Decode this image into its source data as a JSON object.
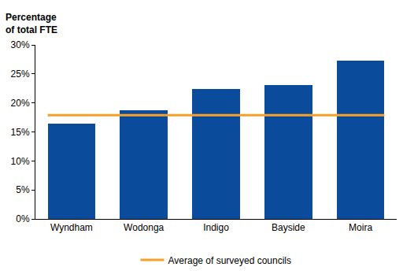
{
  "chart_data": {
    "type": "bar",
    "y_label": "Percentage of total FTE",
    "categories": [
      "Wyndham",
      "Wodonga",
      "Indigo",
      "Bayside",
      "Moira"
    ],
    "values": [
      16.4,
      18.8,
      22.4,
      23.1,
      27.3
    ],
    "color": "#0a4b9b",
    "average": {
      "name": "Average of surveyed councils",
      "value": 17.9,
      "color": "#f5a02a",
      "type": "line"
    },
    "ylim": [
      0,
      30
    ],
    "yticks": [
      {
        "value": 0,
        "label": "0%"
      },
      {
        "value": 5,
        "label": "5%"
      },
      {
        "value": 10,
        "label": "10%"
      },
      {
        "value": 15,
        "label": "15%"
      },
      {
        "value": 20,
        "label": "20%"
      },
      {
        "value": 25,
        "label": "25%"
      },
      {
        "value": 30,
        "label": "30%"
      }
    ],
    "grid": false,
    "legend": "bottom"
  }
}
